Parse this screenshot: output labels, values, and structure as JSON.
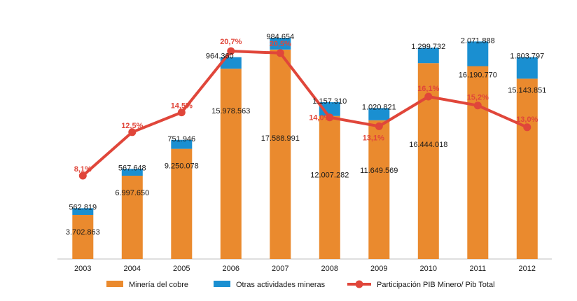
{
  "chart_data": {
    "type": "bar",
    "stacked": true,
    "categories": [
      "2003",
      "2004",
      "2005",
      "2006",
      "2007",
      "2008",
      "2009",
      "2010",
      "2011",
      "2012"
    ],
    "series": [
      {
        "name": "Minería del cobre",
        "color": "#ea8a2e",
        "values": [
          3702863,
          6997650,
          9250078,
          15978563,
          17588991,
          12007282,
          11649569,
          16444018,
          16190770,
          15143851
        ],
        "labels": [
          "3.702.863",
          "6.997.650",
          "9.250.078",
          "15.978.563",
          "17.588.991",
          "12.007.282",
          "11.649.569",
          "16.444.018",
          "16.190.770",
          "15.143.851"
        ]
      },
      {
        "name": "Otras actividades mineras",
        "color": "#1a8fd1",
        "values": [
          562819,
          567648,
          751946,
          964360,
          984654,
          1157310,
          1020821,
          1299732,
          2071888,
          1803797
        ],
        "labels": [
          "562.819",
          "567.648",
          "751.946",
          "964.360",
          "984.654",
          "1.157.310",
          "1.020.821",
          "1.299.732",
          "2.071.888",
          "1.803.797"
        ]
      }
    ],
    "line": {
      "name": "Participación PIB Minero/ Pib Total",
      "color": "#e0463a",
      "values": [
        8.1,
        12.5,
        14.5,
        20.7,
        20.5,
        14.0,
        13.1,
        16.1,
        15.2,
        13.0
      ],
      "labels": [
        "8,1%",
        "12,5%",
        "14,5%",
        "20,7%",
        "20,5%",
        "14,0%",
        "13,1%",
        "16,1%",
        "15,2%",
        "13,0%"
      ],
      "ylim": [
        0,
        30
      ]
    },
    "ylim": [
      0,
      20000000
    ],
    "legend_position": "bottom"
  }
}
